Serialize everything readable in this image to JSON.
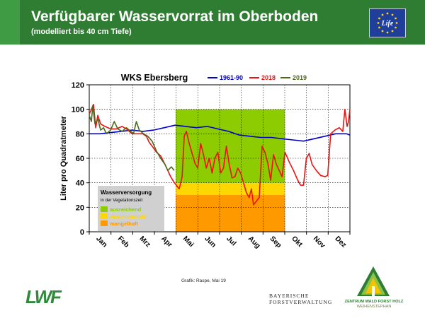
{
  "header": {
    "title": "Verfügbarer Wasservorrat im Oberboden",
    "subtitle": "(modelliert bis 40 cm Tiefe)",
    "eu_logo_text": "Life"
  },
  "chart_data": {
    "type": "line",
    "title": "WKS Ebersberg",
    "ylabel": "Liter pro Quadratmeter",
    "xlabel": "",
    "ylim": [
      0,
      120
    ],
    "yticks": [
      0,
      20,
      40,
      60,
      80,
      100,
      120
    ],
    "xlim": [
      0,
      365
    ],
    "months": [
      "Jan",
      "Feb",
      "Mrz",
      "Apr",
      "Mai",
      "Jun",
      "Jul",
      "Aug",
      "Sep",
      "Okt",
      "Nov",
      "Dez"
    ],
    "grid": true,
    "legend_position": "top",
    "vegetation_period": {
      "start_day": 121,
      "end_day": 274,
      "bands": [
        {
          "label": "ausreichend",
          "from": 40,
          "to": 100,
          "color": "#8ccc00"
        },
        {
          "label": "eingeschränkt",
          "from": 30,
          "to": 40,
          "color": "#ffd700"
        },
        {
          "label": "mangelhaft",
          "from": 0,
          "to": 30,
          "color": "#ff9900"
        }
      ]
    },
    "band_legend": {
      "title": "Wasserversorgung",
      "subtitle": "in der Vegetationszeit"
    },
    "series": [
      {
        "name": "1961-90",
        "color": "#0000cc",
        "points": [
          [
            0,
            80
          ],
          [
            15,
            80
          ],
          [
            30,
            81
          ],
          [
            45,
            82
          ],
          [
            60,
            83
          ],
          [
            75,
            82
          ],
          [
            90,
            83
          ],
          [
            105,
            85
          ],
          [
            120,
            87
          ],
          [
            135,
            86
          ],
          [
            150,
            85
          ],
          [
            165,
            86
          ],
          [
            180,
            84
          ],
          [
            195,
            82
          ],
          [
            210,
            79
          ],
          [
            225,
            78
          ],
          [
            240,
            77
          ],
          [
            255,
            77
          ],
          [
            270,
            76
          ],
          [
            285,
            75
          ],
          [
            300,
            74
          ],
          [
            315,
            76
          ],
          [
            330,
            78
          ],
          [
            345,
            80
          ],
          [
            360,
            80
          ],
          [
            365,
            79
          ]
        ]
      },
      {
        "name": "2018",
        "color": "#ee1111",
        "points": [
          [
            0,
            96
          ],
          [
            3,
            100
          ],
          [
            6,
            104
          ],
          [
            9,
            85
          ],
          [
            12,
            95
          ],
          [
            16,
            88
          ],
          [
            22,
            86
          ],
          [
            30,
            84
          ],
          [
            38,
            84
          ],
          [
            46,
            86
          ],
          [
            52,
            84
          ],
          [
            60,
            80
          ],
          [
            68,
            80
          ],
          [
            75,
            80
          ],
          [
            80,
            78
          ],
          [
            84,
            73
          ],
          [
            88,
            70
          ],
          [
            94,
            65
          ],
          [
            100,
            62
          ],
          [
            106,
            55
          ],
          [
            110,
            50
          ],
          [
            114,
            45
          ],
          [
            118,
            41
          ],
          [
            122,
            38
          ],
          [
            126,
            35
          ],
          [
            130,
            45
          ],
          [
            133,
            78
          ],
          [
            136,
            82
          ],
          [
            140,
            72
          ],
          [
            144,
            64
          ],
          [
            148,
            56
          ],
          [
            152,
            52
          ],
          [
            156,
            72
          ],
          [
            160,
            63
          ],
          [
            164,
            52
          ],
          [
            168,
            60
          ],
          [
            172,
            48
          ],
          [
            176,
            60
          ],
          [
            180,
            65
          ],
          [
            184,
            48
          ],
          [
            188,
            52
          ],
          [
            192,
            70
          ],
          [
            196,
            55
          ],
          [
            200,
            44
          ],
          [
            204,
            45
          ],
          [
            208,
            52
          ],
          [
            212,
            48
          ],
          [
            216,
            40
          ],
          [
            220,
            32
          ],
          [
            224,
            28
          ],
          [
            227,
            35
          ],
          [
            230,
            22
          ],
          [
            234,
            25
          ],
          [
            238,
            28
          ],
          [
            242,
            70
          ],
          [
            246,
            65
          ],
          [
            250,
            56
          ],
          [
            254,
            42
          ],
          [
            258,
            63
          ],
          [
            262,
            55
          ],
          [
            266,
            50
          ],
          [
            270,
            45
          ],
          [
            274,
            65
          ],
          [
            280,
            57
          ],
          [
            286,
            50
          ],
          [
            292,
            42
          ],
          [
            296,
            38
          ],
          [
            300,
            38
          ],
          [
            304,
            60
          ],
          [
            308,
            64
          ],
          [
            312,
            55
          ],
          [
            318,
            50
          ],
          [
            324,
            46
          ],
          [
            330,
            45
          ],
          [
            334,
            46
          ],
          [
            338,
            80
          ],
          [
            344,
            83
          ],
          [
            350,
            85
          ],
          [
            355,
            82
          ],
          [
            358,
            100
          ],
          [
            361,
            86
          ],
          [
            363,
            90
          ],
          [
            365,
            100
          ]
        ]
      },
      {
        "name": "2019",
        "color": "#4b6a1a",
        "points": [
          [
            0,
            95
          ],
          [
            3,
            90
          ],
          [
            5,
            103
          ],
          [
            8,
            88
          ],
          [
            12,
            92
          ],
          [
            16,
            83
          ],
          [
            20,
            85
          ],
          [
            24,
            80
          ],
          [
            30,
            83
          ],
          [
            35,
            90
          ],
          [
            40,
            84
          ],
          [
            46,
            82
          ],
          [
            52,
            85
          ],
          [
            58,
            82
          ],
          [
            62,
            80
          ],
          [
            66,
            90
          ],
          [
            70,
            83
          ],
          [
            76,
            80
          ],
          [
            82,
            78
          ],
          [
            88,
            74
          ],
          [
            94,
            66
          ],
          [
            100,
            60
          ],
          [
            106,
            55
          ],
          [
            110,
            50
          ],
          [
            115,
            53
          ],
          [
            119,
            50
          ]
        ]
      }
    ]
  },
  "footer": {
    "credit": "Grafik: Raspe, Mai 19",
    "lwf_logo": "LWF",
    "bfv_line1": "BAYERISCHE",
    "bfv_line2": "FORSTVERWALTUNG",
    "zwfh_line1": "ZENTRUM WALD FORST HOLZ",
    "zwfh_line2": "WEIHENSTEPHAN"
  }
}
